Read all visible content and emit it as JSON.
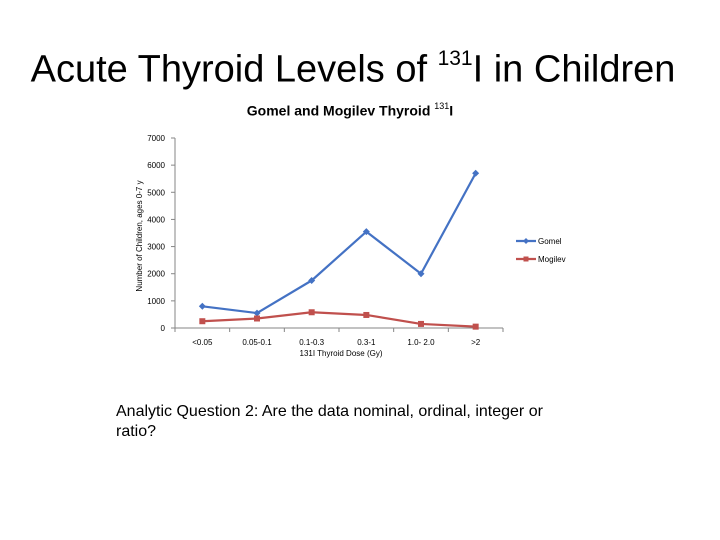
{
  "slide": {
    "title_main": "Acute Thyroid Levels of ",
    "title_sup": "131",
    "title_end": "I in Children",
    "question": "Analytic Question 2:  Are the data nominal, ordinal, integer or ratio?"
  },
  "chart_data": {
    "type": "line",
    "title_main": "Gomel and Mogilev Thyroid ",
    "title_sup": "131",
    "title_end": "I",
    "xlabel": "131I Thyroid Dose (Gy)",
    "ylabel": "Number of Children, ages 0-7 y",
    "categories": [
      "<0.05",
      "0.05-0.1",
      "0.1-0.3",
      "0.3-1",
      "1.0- 2.0",
      ">2"
    ],
    "ylim": [
      0,
      7000
    ],
    "yticks": [
      0,
      1000,
      2000,
      3000,
      4000,
      5000,
      6000,
      7000
    ],
    "legend_position": "right",
    "grid": false,
    "series": [
      {
        "name": "Gomel",
        "color": "#4472C4",
        "marker": "diamond",
        "values": [
          800,
          550,
          1750,
          3550,
          2000,
          5700
        ]
      },
      {
        "name": "Mogilev",
        "color": "#C0504D",
        "marker": "square",
        "values": [
          250,
          350,
          580,
          480,
          150,
          50
        ]
      }
    ]
  }
}
